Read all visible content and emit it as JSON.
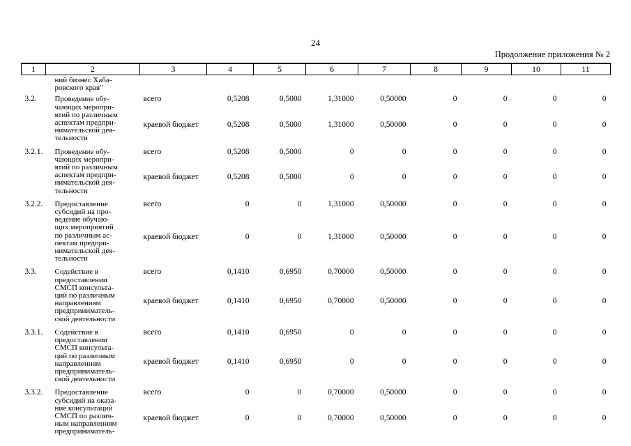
{
  "page": {
    "number": "24",
    "continuation": "Продолжение приложения № 2"
  },
  "table": {
    "column_numbers": [
      "1",
      "2",
      "3",
      "4",
      "5",
      "6",
      "7",
      "8",
      "9",
      "10",
      "11"
    ],
    "carryover_lines": [
      "ний бизнес Хаба-",
      "ровского края\""
    ],
    "budget_labels": [
      "всего",
      "краевой бюджет"
    ],
    "groups": [
      {
        "num": "3.2.",
        "desc_lines": [
          "Проведение обу-",
          "чающих меропри-",
          "ятий по различным",
          "аспектам предпри-",
          "нимательской дея-",
          "тельности"
        ],
        "rows": [
          {
            "label": "всего",
            "values": [
              "0,5208",
              "0,5000",
              "1,31000",
              "0,50000",
              "0",
              "0",
              "0",
              "0"
            ]
          },
          {
            "label": "краевой бюджет",
            "values": [
              "0,5208",
              "0,5000",
              "1,31000",
              "0,50000",
              "0",
              "0",
              "0",
              "0"
            ]
          }
        ]
      },
      {
        "num": "3.2.1.",
        "desc_lines": [
          "Проведение обу-",
          "чающих меропри-",
          "ятий по различным",
          "аспектам предпри-",
          "нимательской дея-",
          "тельности"
        ],
        "rows": [
          {
            "label": "всего",
            "values": [
              "0,5208",
              "0,5000",
              "0",
              "0",
              "0",
              "0",
              "0",
              "0"
            ]
          },
          {
            "label": "краевой бюджет",
            "values": [
              "0,5208",
              "0,5000",
              "0",
              "0",
              "0",
              "0",
              "0",
              "0"
            ]
          }
        ]
      },
      {
        "num": "3.2.2.",
        "desc_lines": [
          "Предоставление",
          "субсидий на про-",
          "ведение обучаю-",
          "щих мероприятий",
          "по различным ас-",
          "пектам предпри-",
          "нимательской дея-",
          "тельности"
        ],
        "rows": [
          {
            "label": "всего",
            "values": [
              "0",
              "0",
              "1,31000",
              "0,50000",
              "0",
              "0",
              "0",
              "0"
            ]
          },
          {
            "label": "краевой бюджет",
            "values": [
              "0",
              "0",
              "1,31000",
              "0,50000",
              "0",
              "0",
              "0",
              "0"
            ]
          }
        ]
      },
      {
        "num": "3.3.",
        "desc_lines": [
          "Содействие в",
          "предоставлении",
          "СМСП консульта-",
          "ций по различным",
          "направлениям",
          "предприниматель-",
          "ской деятельности"
        ],
        "rows": [
          {
            "label": "всего",
            "values": [
              "0,1410",
              "0,6950",
              "0,70000",
              "0,50000",
              "0",
              "0",
              "0",
              "0"
            ]
          },
          {
            "label": "краевой бюджет",
            "values": [
              "0,1410",
              "0,6950",
              "0,70000",
              "0,50000",
              "0",
              "0",
              "0",
              "0"
            ]
          }
        ]
      },
      {
        "num": "3.3.1.",
        "desc_lines": [
          "Содействие в",
          "предоставлении",
          "СМСП консульта-",
          "ций по различным",
          "направлениям",
          "предприниматель-",
          "ской деятельности"
        ],
        "rows": [
          {
            "label": "всего",
            "values": [
              "0,1410",
              "0,6950",
              "0",
              "0",
              "0",
              "0",
              "0",
              "0"
            ]
          },
          {
            "label": "краевой бюджет",
            "values": [
              "0,1410",
              "0,6950",
              "0",
              "0",
              "0",
              "0",
              "0",
              "0"
            ]
          }
        ]
      },
      {
        "num": "3.3.2.",
        "desc_lines": [
          "Предоставление",
          "субсидий на оказа-",
          "ние консультаций",
          "СМСП по различ-",
          "ным направлениям",
          "предприниматель-"
        ],
        "rows": [
          {
            "label": "всего",
            "values": [
              "0",
              "0",
              "0,70000",
              "0,50000",
              "0",
              "0",
              "0",
              "0"
            ]
          },
          {
            "label": "краевой бюджет",
            "values": [
              "0",
              "0",
              "0,70000",
              "0,50000",
              "0",
              "0",
              "0",
              "0"
            ]
          }
        ]
      }
    ]
  }
}
